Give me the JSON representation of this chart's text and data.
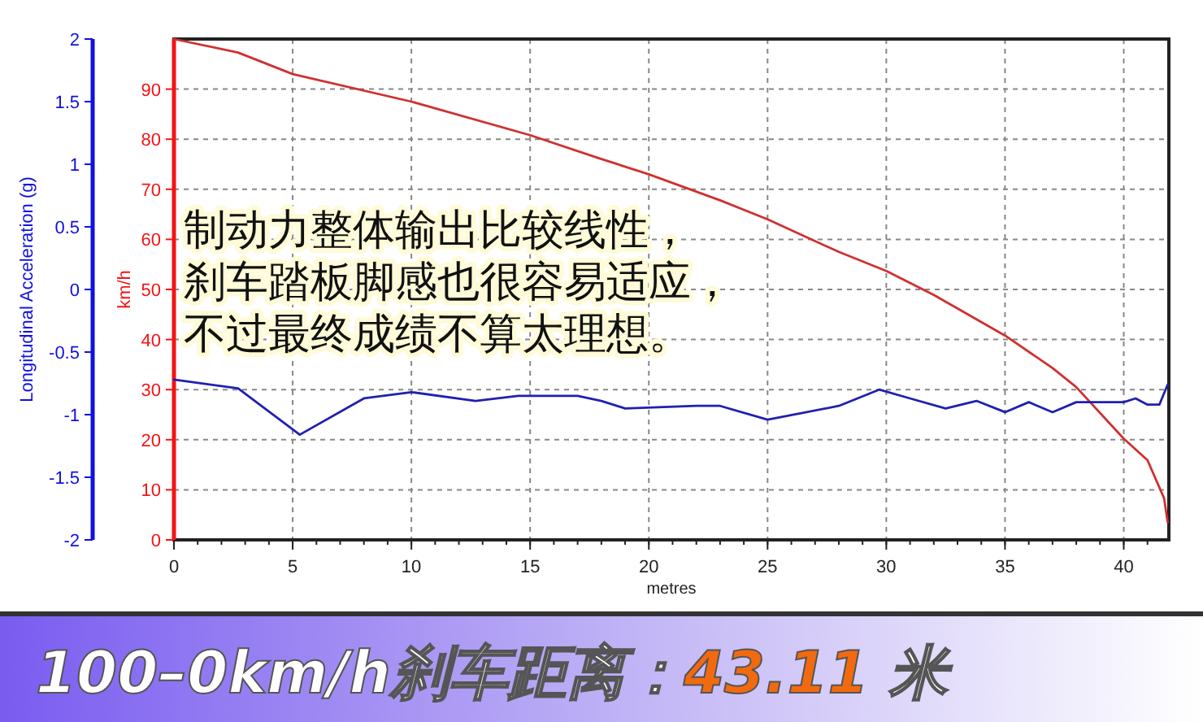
{
  "chart_data": {
    "type": "line",
    "title": "100–0km/h刹车距离：43.11 米",
    "xlabel": "metres",
    "ylabel": "km/h",
    "y2label": "Longitudinal Acceleration (g)",
    "xlim": [
      0,
      41.9
    ],
    "xticks": [
      0,
      5,
      10,
      15,
      20,
      25,
      30,
      35,
      40
    ],
    "ylim": [
      0,
      100
    ],
    "yticks": [
      0,
      10,
      20,
      30,
      40,
      50,
      60,
      70,
      80,
      90
    ],
    "y2lim": [
      -2,
      2
    ],
    "y2ticks": [
      -2,
      -1.5,
      -1,
      -0.5,
      0,
      0.5,
      1,
      1.5,
      2
    ],
    "grid": true,
    "line_style": "solid",
    "annotations": [
      "制动力整体输出比较线性，",
      "刹车踏板脚感也很容易适应，",
      "不过最终成绩不算太理想。"
    ],
    "series": [
      {
        "color": "#d03030",
        "x": [
          0,
          2.7,
          5,
          10,
          15,
          17.9,
          20,
          23,
          25,
          28,
          30,
          32,
          35,
          37,
          38,
          40,
          41,
          41.7,
          41.85
        ],
        "values": [
          100,
          97.3,
          93,
          87.5,
          80.8,
          76.2,
          73,
          67.8,
          64,
          57.5,
          53.7,
          48.9,
          40.8,
          34.3,
          30.5,
          20.2,
          15.9,
          8.3,
          3.5
        ]
      },
      {
        "color": "#2020b0",
        "axis": "y2",
        "x": [
          0,
          2.7,
          5.3,
          8,
          10,
          12.7,
          14.5,
          17,
          18,
          19,
          22,
          23,
          25,
          28,
          29.7,
          31,
          32.5,
          33.8,
          35,
          36,
          37,
          38,
          40,
          40.5,
          41,
          41.5,
          41.85
        ],
        "values": [
          -0.72,
          -0.79,
          -1.16,
          -0.87,
          -0.82,
          -0.89,
          -0.85,
          -0.85,
          -0.89,
          -0.95,
          -0.93,
          -0.93,
          -1.04,
          -0.93,
          -0.8,
          -0.87,
          -0.95,
          -0.89,
          -0.98,
          -0.9,
          -0.98,
          -0.9,
          -0.9,
          -0.87,
          -0.92,
          -0.92,
          -0.76
        ]
      }
    ]
  }
}
